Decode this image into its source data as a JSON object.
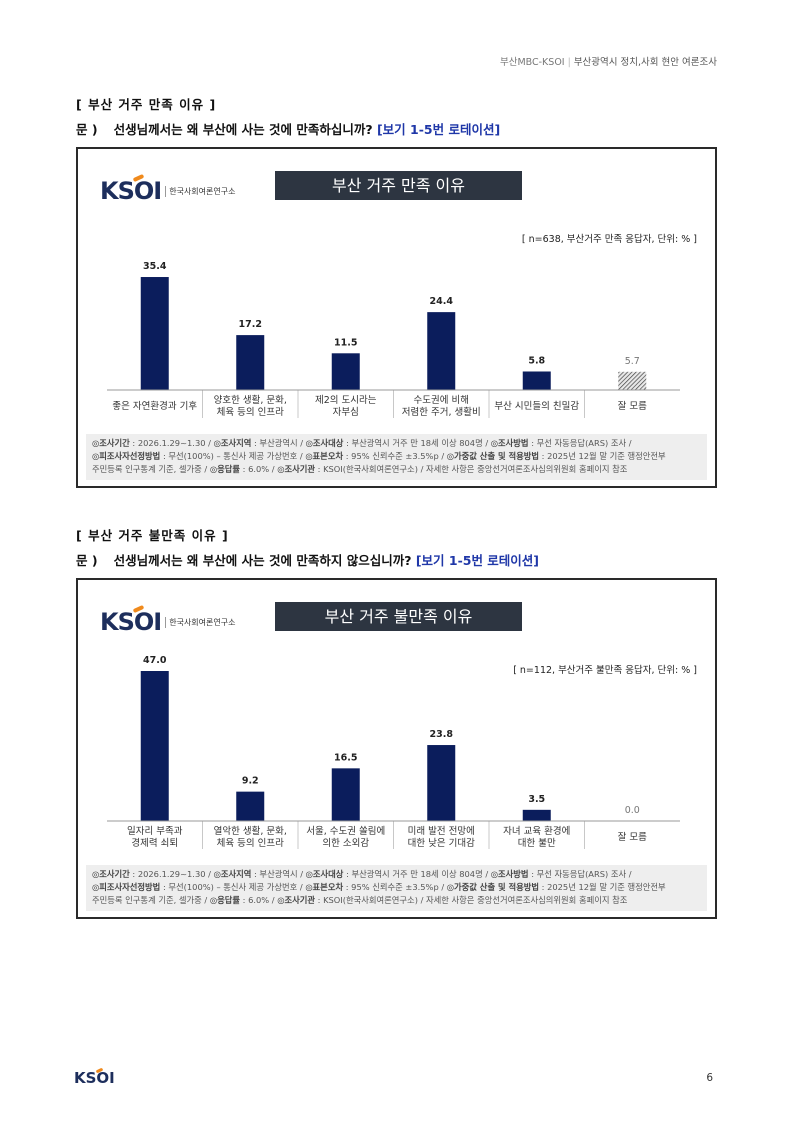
{
  "header": {
    "org": "부산MBC-KSOI",
    "title": "부산광역시 정치,사회 현안 여론조사"
  },
  "sections": [
    {
      "section_title": "[ 부산 거주 만족 이유 ]",
      "question_label": "문 )",
      "question_text": "선생님께서는 왜 부산에 사는 것에 만족하십니까?",
      "rotation": "[보기 1-5번 로테이션]",
      "logo_text": "KSOI",
      "logo_sub": "한국사회여론연구소",
      "chart_title": "부산 거주 만족 이유",
      "chart_note": "[ n=638, 부산거주 만족 응답자, 단위: % ]",
      "methodology": [
        [
          "◎조사기간",
          " : 2026.1.29~1.30 / ",
          "◎조사지역",
          " : 부산광역시 / ",
          "◎조사대상",
          " : 부산광역시 거주 만 18세 이상 804명 / ",
          "◎조사방법",
          " : 무선 자동응답(ARS) 조사 /"
        ],
        [
          "◎피조사자선정방법",
          " : 무선(100%) – 통신사 제공 가상번호 / ",
          "◎표본오차",
          " : 95% 신뢰수준 ±3.5%p / ",
          "◎가중값 산출 및 적용방법",
          " : 2025년 12월 말 기준 행정안전부"
        ],
        [
          "",
          "주민등록 인구통계 기준, 셀가중 / ",
          "◎응답률",
          " : 6.0% / ",
          "◎조사기관",
          " : KSOI(한국사회여론연구소) / 자세한 사항은 중앙선거여론조사심의위원회 홈페이지 참조"
        ]
      ]
    },
    {
      "section_title": "[ 부산 거주 불만족 이유 ]",
      "question_label": "문 )",
      "question_text": "선생님께서는 왜 부산에 사는 것에 만족하지 않으십니까?",
      "rotation": "[보기 1-5번 로테이션]",
      "logo_text": "KSOI",
      "logo_sub": "한국사회여론연구소",
      "chart_title": "부산 거주 불만족 이유",
      "chart_note": "[ n=112, 부산거주 불만족 응답자, 단위: % ]",
      "methodology": [
        [
          "◎조사기간",
          " : 2026.1.29~1.30 / ",
          "◎조사지역",
          " : 부산광역시 / ",
          "◎조사대상",
          " : 부산광역시 거주 만 18세 이상 804명 / ",
          "◎조사방법",
          " : 무선 자동응답(ARS) 조사 /"
        ],
        [
          "◎피조사자선정방법",
          " : 무선(100%) – 통신사 제공 가상번호 / ",
          "◎표본오차",
          " : 95% 신뢰수준 ±3.5%p / ",
          "◎가중값 산출 및 적용방법",
          " : 2025년 12월 말 기준 행정안전부"
        ],
        [
          "",
          "주민등록 인구통계 기준, 셀가중 / ",
          "◎응답률",
          " : 6.0% / ",
          "◎조사기관",
          " : KSOI(한국사회여론연구소) / 자세한 사항은 중앙선거여론조사심의위원회 홈페이지 참조"
        ]
      ]
    }
  ],
  "chart_data": [
    {
      "type": "bar",
      "title": "부산 거주 만족 이유",
      "categories": [
        [
          "좋은 자연환경과 기후"
        ],
        [
          "양호한 생활, 문화,",
          "체육 등의 인프라"
        ],
        [
          "제2의 도시라는",
          "자부심"
        ],
        [
          "수도권에 비해",
          "저렴한 주거, 생활비"
        ],
        [
          "부산 시민들의 친밀감"
        ],
        [
          "잘 모름"
        ]
      ],
      "values": [
        35.4,
        17.2,
        11.5,
        24.4,
        5.8,
        5.7
      ],
      "value_labels": [
        "35.4",
        "17.2",
        "11.5",
        "24.4",
        "5.8",
        "5.7"
      ],
      "ylim": [
        0,
        47
      ],
      "bar_color": "#0b1d5c",
      "dontknow_style": "hatched"
    },
    {
      "type": "bar",
      "title": "부산 거주 불만족 이유",
      "categories": [
        [
          "일자리 부족과",
          "경제력 쇠퇴"
        ],
        [
          "열악한 생활, 문화,",
          "체육 등의 인프라"
        ],
        [
          "서울, 수도권 쏠림에",
          "의한 소외감"
        ],
        [
          "미래 발전 전망에",
          "대한 낮은 기대감"
        ],
        [
          "자녀 교육 환경에",
          "대한 불만"
        ],
        [
          "잘 모름"
        ]
      ],
      "values": [
        47.0,
        9.2,
        16.5,
        23.8,
        3.5,
        0.0
      ],
      "value_labels": [
        "47.0",
        "9.2",
        "16.5",
        "23.8",
        "3.5",
        "0.0"
      ],
      "ylim": [
        0,
        47
      ],
      "bar_color": "#0b1d5c",
      "dontknow_style": "hatched"
    }
  ],
  "footer": {
    "logo_text": "KSOI",
    "page_number": "6"
  }
}
